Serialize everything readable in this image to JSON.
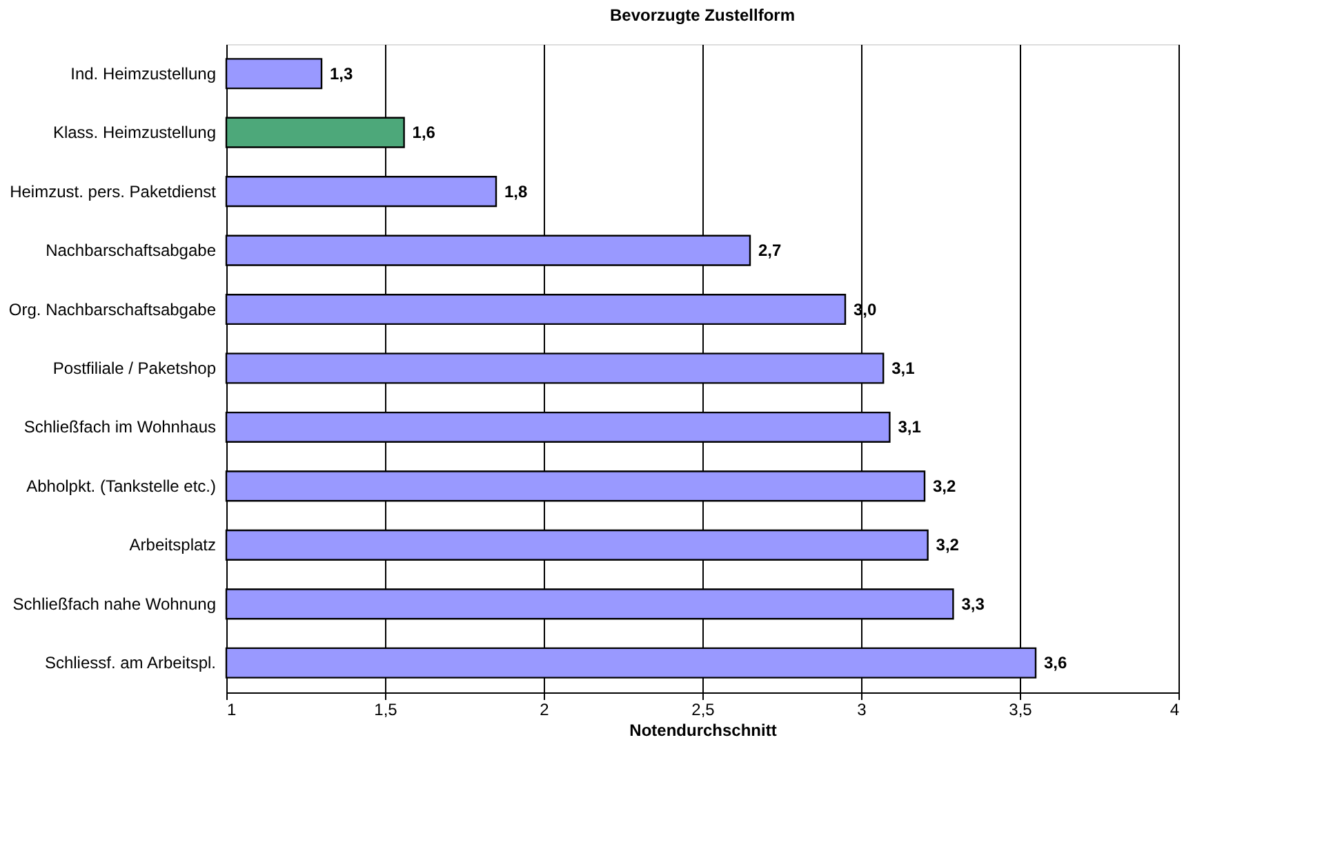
{
  "chart_data": {
    "type": "bar",
    "orientation": "horizontal",
    "title": "Bevorzugte Zustellform",
    "xlabel": "Notendurchschnitt",
    "categories": [
      "Ind. Heimzustellung",
      "Klass. Heimzustellung",
      "Heimzust. pers. Paketdienst",
      "Nachbarschaftsabgabe",
      "Org. Nachbarschaftsabgabe",
      "Postfiliale / Paketshop",
      "Schließfach im Wohnhaus",
      "Abholpkt. (Tankstelle etc.)",
      "Arbeitsplatz",
      "Schließfach nahe Wohnung",
      "Schliessf. am Arbeitspl."
    ],
    "values": [
      1.3,
      1.56,
      1.85,
      2.65,
      2.95,
      3.07,
      3.09,
      3.2,
      3.21,
      3.29,
      3.55
    ],
    "value_labels": [
      "1,3",
      "1,6",
      "1,8",
      "2,7",
      "3,0",
      "3,1",
      "3,1",
      "3,2",
      "3,2",
      "3,3",
      "3,6"
    ],
    "colors": [
      "#9999ff",
      "#4da87a",
      "#9999ff",
      "#9999ff",
      "#9999ff",
      "#9999ff",
      "#9999ff",
      "#9999ff",
      "#9999ff",
      "#9999ff",
      "#9999ff"
    ],
    "xlim": [
      1,
      4
    ],
    "xticks": [
      {
        "value": 1,
        "label": "1"
      },
      {
        "value": 1.5,
        "label": "1,5"
      },
      {
        "value": 2,
        "label": "2"
      },
      {
        "value": 2.5,
        "label": "2,5"
      },
      {
        "value": 3,
        "label": "3"
      },
      {
        "value": 3.5,
        "label": "3,5"
      },
      {
        "value": 4,
        "label": "4"
      }
    ],
    "grid": "x"
  }
}
